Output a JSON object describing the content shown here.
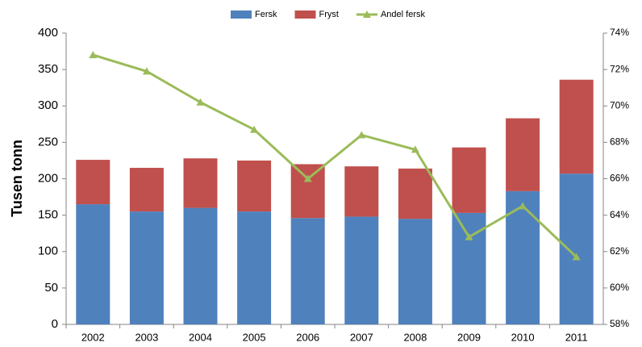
{
  "chart_data": {
    "type": "bar",
    "stacked": true,
    "y_label": "Tusen tonn",
    "categories": [
      "2002",
      "2003",
      "2004",
      "2005",
      "2006",
      "2007",
      "2008",
      "2009",
      "2010",
      "2011"
    ],
    "series": [
      {
        "name": "Fersk",
        "color": "#4f81bd",
        "values": [
          165,
          155,
          160,
          155,
          146,
          148,
          145,
          153,
          183,
          207
        ]
      },
      {
        "name": "Fryst",
        "color": "#c0504d",
        "values": [
          61,
          60,
          68,
          70,
          74,
          69,
          69,
          90,
          100,
          129
        ]
      },
      {
        "name": "Andel fersk",
        "color": "#9bbb59",
        "type": "line",
        "axis": "y2",
        "marker": "triangle",
        "values": [
          72.8,
          71.9,
          70.2,
          68.7,
          66.0,
          68.4,
          67.6,
          62.8,
          64.5,
          61.7
        ]
      }
    ],
    "ylim": [
      0,
      400
    ],
    "yticks": [
      0,
      50,
      100,
      150,
      200,
      250,
      300,
      350,
      400
    ],
    "y2lim": [
      58,
      74
    ],
    "y2ticks": [
      {
        "value": 58,
        "label": "58%"
      },
      {
        "value": 60,
        "label": "60%"
      },
      {
        "value": 62,
        "label": "62%"
      },
      {
        "value": 64,
        "label": "64%"
      },
      {
        "value": 66,
        "label": "66%"
      },
      {
        "value": 68,
        "label": "68%"
      },
      {
        "value": 70,
        "label": "70%"
      },
      {
        "value": 72,
        "label": "72%"
      },
      {
        "value": 74,
        "label": "74%"
      }
    ],
    "legend": "top",
    "grid": false
  }
}
